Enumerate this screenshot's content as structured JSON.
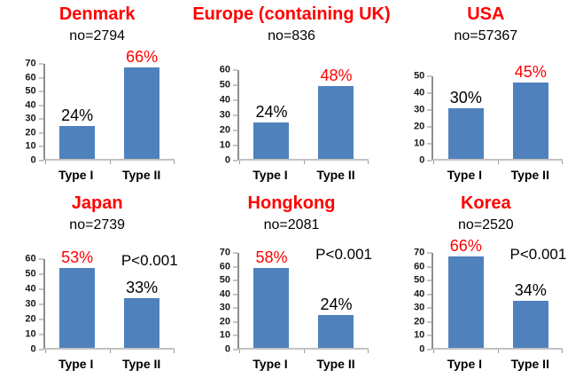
{
  "figure": {
    "description_note": "Six bar charts comparing Type I vs Type II proportions by region",
    "background": "#ffffff"
  },
  "colors": {
    "bar": "#4F81BD",
    "title_red": "#FF0000",
    "value_label_black": "#000000",
    "value_label_red": "#FF0000",
    "axis_line": "#8E8E8E",
    "baseline": "#C2C2C2"
  },
  "chart_data": [
    {
      "type": "bar",
      "title": "Denmark",
      "subtitle": "no=2794",
      "n": 2794,
      "categories": [
        "Type I",
        "Type II"
      ],
      "values": [
        24,
        66
      ],
      "value_labels": [
        "24%",
        "66%"
      ],
      "value_label_colors": [
        "#000000",
        "#FF0000"
      ],
      "ylim": [
        0,
        70
      ],
      "ytick_step": 10,
      "pvalue": ""
    },
    {
      "type": "bar",
      "title": "Europe (containing UK)",
      "subtitle": "no=836",
      "n": 836,
      "categories": [
        "Type I",
        "Type II"
      ],
      "values": [
        24,
        48
      ],
      "value_labels": [
        "24%",
        "48%"
      ],
      "value_label_colors": [
        "#000000",
        "#FF0000"
      ],
      "ylim": [
        0,
        60
      ],
      "ytick_step": 10,
      "pvalue": ""
    },
    {
      "type": "bar",
      "title": "USA",
      "subtitle": "no=57367",
      "n": 57367,
      "categories": [
        "Type I",
        "Type II"
      ],
      "values": [
        30,
        45
      ],
      "value_labels": [
        "30%",
        "45%"
      ],
      "value_label_colors": [
        "#000000",
        "#FF0000"
      ],
      "ylim": [
        0,
        50
      ],
      "ytick_step": 10,
      "pvalue": ""
    },
    {
      "type": "bar",
      "title": "Japan",
      "subtitle": "no=2739",
      "n": 2739,
      "categories": [
        "Type I",
        "Type II"
      ],
      "values": [
        53,
        33
      ],
      "value_labels": [
        "53%",
        "33%"
      ],
      "value_label_colors": [
        "#FF0000",
        "#000000"
      ],
      "ylim": [
        0,
        60
      ],
      "ytick_step": 10,
      "pvalue": "P<0.001"
    },
    {
      "type": "bar",
      "title": "Hongkong",
      "subtitle": "no=2081",
      "n": 2081,
      "categories": [
        "Type I",
        "Type II"
      ],
      "values": [
        58,
        24
      ],
      "value_labels": [
        "58%",
        "24%"
      ],
      "value_label_colors": [
        "#FF0000",
        "#000000"
      ],
      "ylim": [
        0,
        70
      ],
      "ytick_step": 10,
      "pvalue": "P<0.001"
    },
    {
      "type": "bar",
      "title": "Korea",
      "subtitle": "no=2520",
      "n": 2520,
      "categories": [
        "Type I",
        "Type II"
      ],
      "values": [
        66,
        34
      ],
      "value_labels": [
        "66%",
        "34%"
      ],
      "value_label_colors": [
        "#FF0000",
        "#000000"
      ],
      "ylim": [
        0,
        70
      ],
      "ytick_step": 10,
      "pvalue": "P<0.001"
    }
  ]
}
